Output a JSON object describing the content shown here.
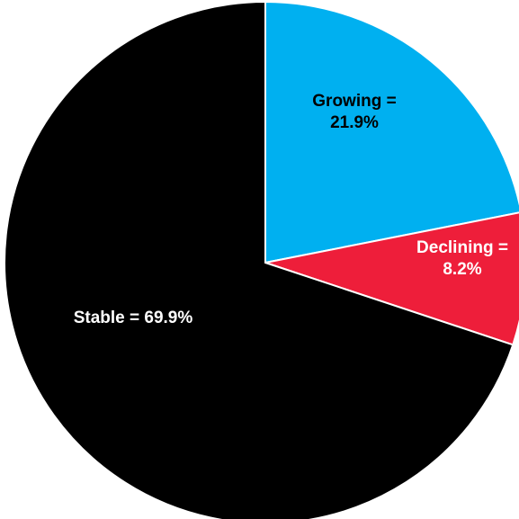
{
  "chart_data": {
    "type": "pie",
    "title": "",
    "start_angle_deg": 0,
    "direction": "clockwise",
    "slices": [
      {
        "name": "Growing",
        "value": 21.9,
        "color": "#00b0f0",
        "label_lines": [
          "Growing =",
          "21.9%"
        ],
        "label_color": "#000000"
      },
      {
        "name": "Declining",
        "value": 8.2,
        "color": "#ee1e3a",
        "label_lines": [
          "Declining =",
          "8.2%"
        ],
        "label_color": "#ffffff"
      },
      {
        "name": "Stable",
        "value": 69.9,
        "color": "#000000",
        "label_lines": [
          "Stable = 69.9%"
        ],
        "label_color": "#ffffff"
      }
    ]
  }
}
